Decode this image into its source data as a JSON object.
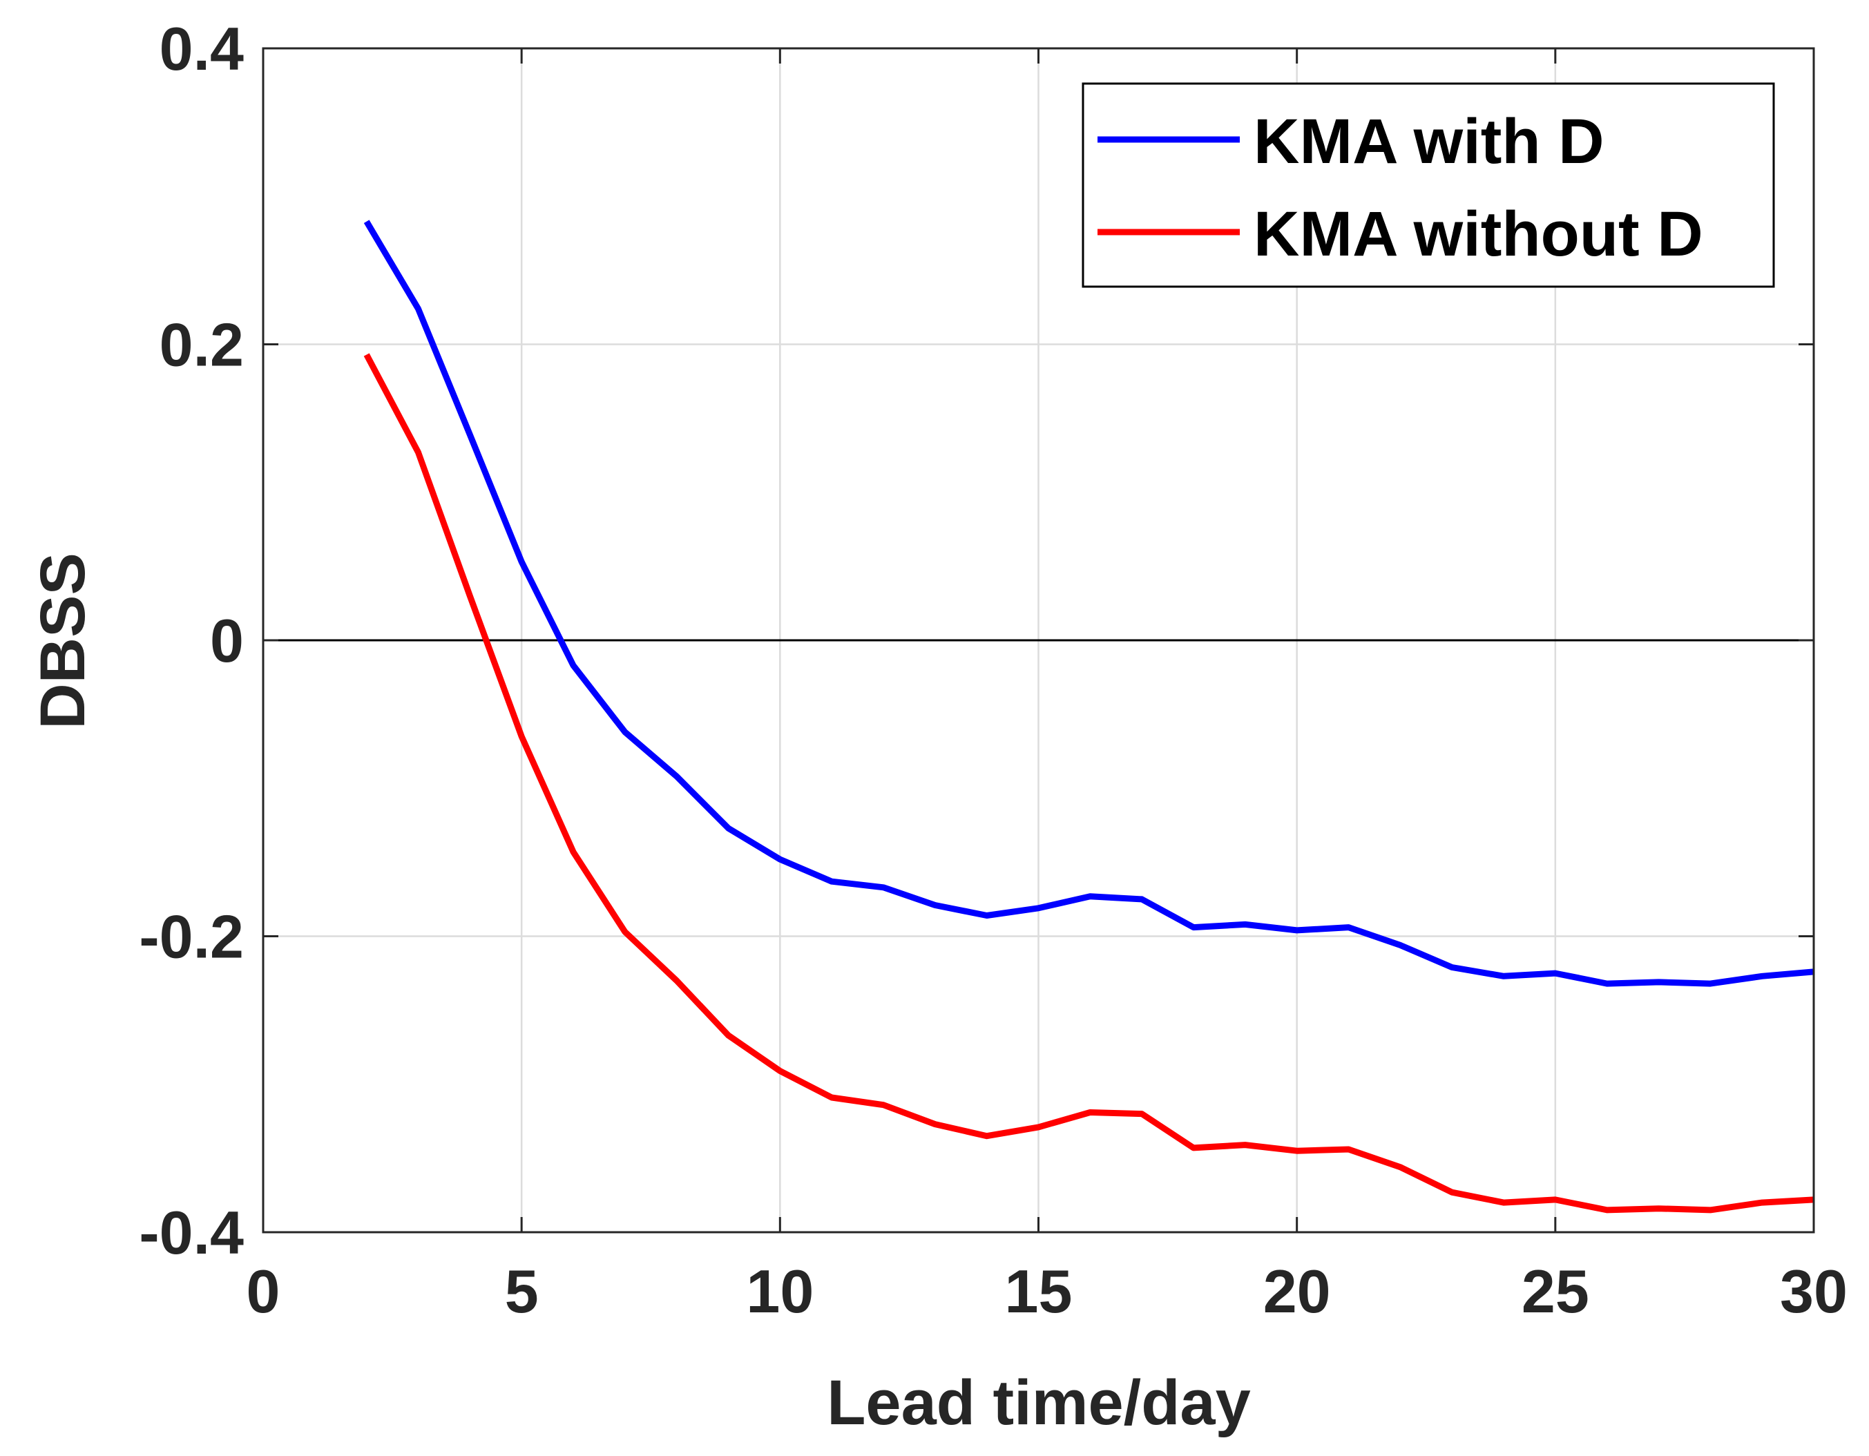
{
  "chart_data": {
    "type": "line",
    "title": "",
    "xlabel": "Lead time/day",
    "ylabel": "DBSS",
    "xlim": [
      0,
      30
    ],
    "ylim": [
      -0.4,
      0.4
    ],
    "xticks": [
      0,
      5,
      10,
      15,
      20,
      25,
      30
    ],
    "xtick_labels": [
      "0",
      "5",
      "10",
      "15",
      "20",
      "25",
      "30"
    ],
    "yticks": [
      -0.4,
      -0.2,
      0,
      0.2,
      0.4
    ],
    "ytick_labels": [
      "-0.4",
      "-0.2",
      "0",
      "0.2",
      "0.4"
    ],
    "grid": true,
    "reference_line_y": 0,
    "legend_position": "top-right",
    "x": [
      2,
      3,
      4,
      5,
      6,
      7,
      8,
      9,
      10,
      11,
      12,
      13,
      14,
      15,
      16,
      17,
      18,
      19,
      20,
      21,
      22,
      23,
      24,
      25,
      26,
      27,
      28,
      29,
      30
    ],
    "series": [
      {
        "name": "KMA with D",
        "color": "#0000ff",
        "values": [
          0.283,
          0.224,
          0.139,
          0.053,
          -0.017,
          -0.062,
          -0.092,
          -0.127,
          -0.148,
          -0.163,
          -0.167,
          -0.179,
          -0.186,
          -0.181,
          -0.173,
          -0.175,
          -0.194,
          -0.192,
          -0.196,
          -0.194,
          -0.206,
          -0.221,
          -0.227,
          -0.225,
          -0.232,
          -0.231,
          -0.232,
          -0.227,
          -0.224
        ]
      },
      {
        "name": "KMA without D",
        "color": "#ff0000",
        "values": [
          0.193,
          0.127,
          0.03,
          -0.065,
          -0.143,
          -0.197,
          -0.23,
          -0.267,
          -0.291,
          -0.309,
          -0.314,
          -0.327,
          -0.335,
          -0.329,
          -0.319,
          -0.32,
          -0.343,
          -0.341,
          -0.345,
          -0.344,
          -0.356,
          -0.373,
          -0.38,
          -0.378,
          -0.385,
          -0.384,
          -0.385,
          -0.38,
          -0.378
        ]
      }
    ]
  }
}
